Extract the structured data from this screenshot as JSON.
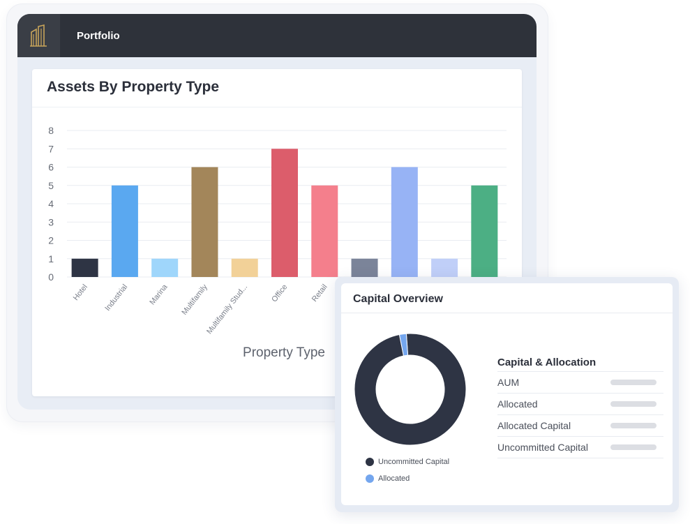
{
  "app": {
    "title": "Portfolio"
  },
  "chart_card": {
    "title": "Assets By Property Type"
  },
  "chart_data": {
    "type": "bar",
    "title": "Assets By Property Type",
    "xlabel": "Property Type",
    "ylabel": "",
    "ylim": [
      0,
      8
    ],
    "yticks": [
      0,
      1,
      2,
      3,
      4,
      5,
      6,
      7,
      8
    ],
    "categories": [
      "Hotel",
      "Industrial",
      "Marina",
      "Multifamily",
      "Multifamily Stud...",
      "Office",
      "Retail",
      "",
      "",
      "",
      ""
    ],
    "values": [
      1,
      5,
      1,
      6,
      1,
      7,
      5,
      1,
      6,
      1,
      5
    ],
    "colors": [
      "#2e3444",
      "#5aa8f0",
      "#9fd6fb",
      "#a3865a",
      "#f2d198",
      "#dc5d6b",
      "#f47f8c",
      "#7b8499",
      "#97b3f5",
      "#c0cff8",
      "#4caf84"
    ],
    "grid": true
  },
  "capital_overview": {
    "title": "Capital Overview",
    "donut": {
      "segments": [
        {
          "label": "Uncommitted Capital",
          "value": 98,
          "color": "#2e3444"
        },
        {
          "label": "Allocated",
          "value": 2,
          "color": "#74a6ee"
        }
      ]
    },
    "table_title": "Capital & Allocation",
    "rows": [
      "AUM",
      "Allocated",
      "Allocated Capital",
      "Uncommitted Capital"
    ]
  }
}
